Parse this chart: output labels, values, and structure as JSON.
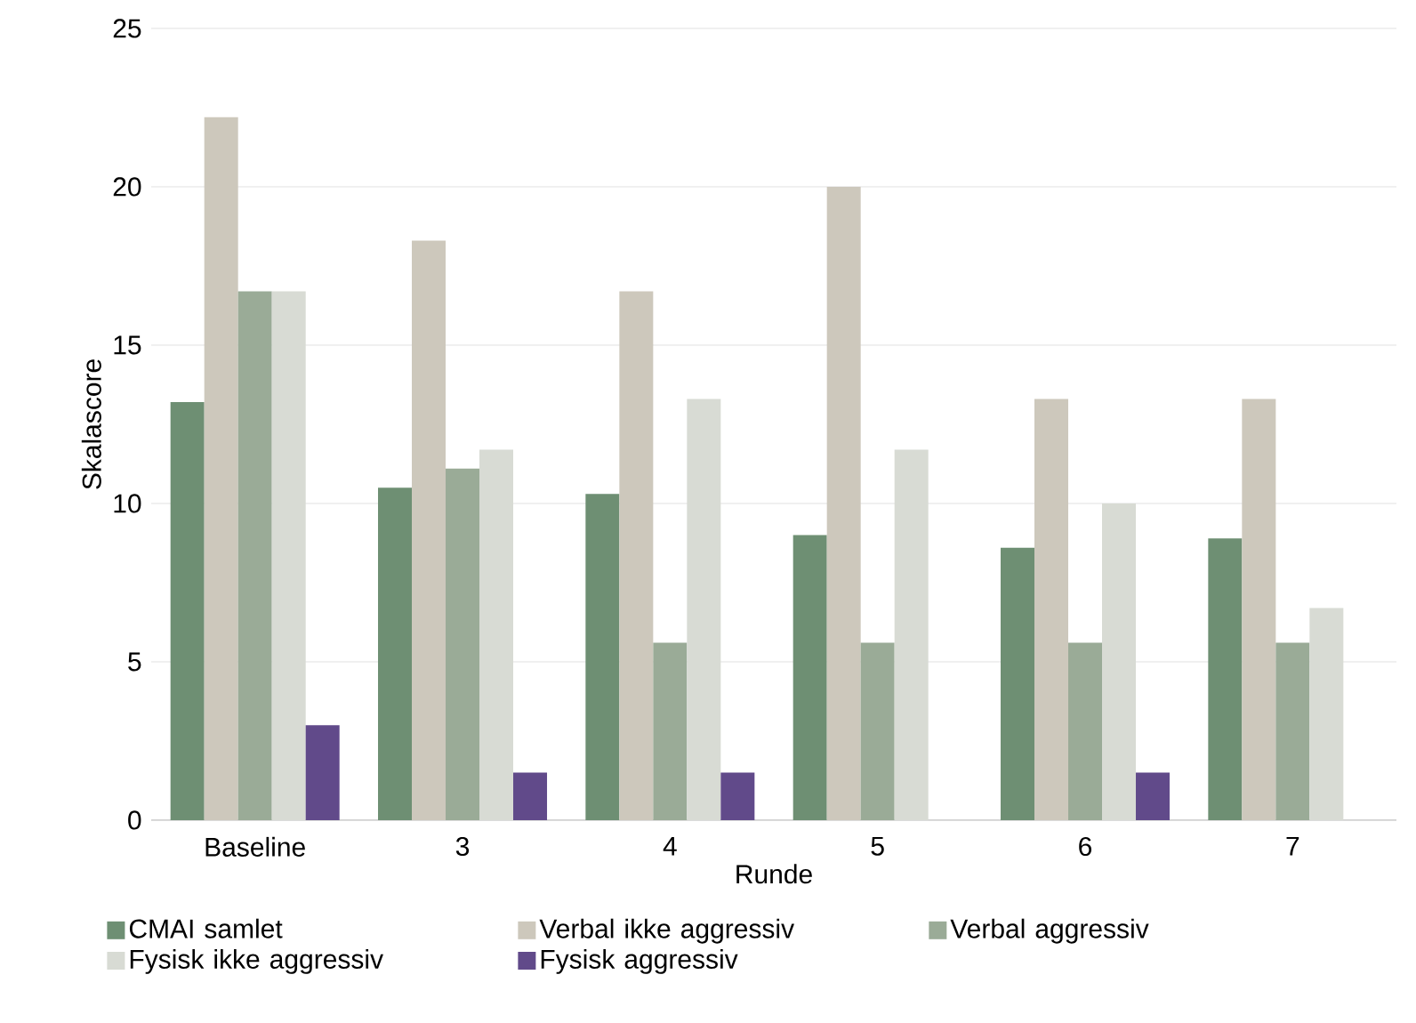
{
  "chart_data": {
    "type": "bar",
    "xlabel": "Runde",
    "ylabel": "Skalascore",
    "categories": [
      "Baseline",
      "3",
      "4",
      "5",
      "6",
      "7"
    ],
    "series": [
      {
        "name": "CMAI samlet",
        "color": "#6e8f73",
        "values": [
          13.2,
          10.5,
          10.3,
          9.0,
          8.6,
          8.9
        ]
      },
      {
        "name": "Verbal ikke aggressiv",
        "color": "#cdc8bc",
        "values": [
          22.2,
          18.3,
          16.7,
          20.0,
          13.3,
          13.3
        ]
      },
      {
        "name": "Verbal aggressiv",
        "color": "#9aab97",
        "values": [
          16.7,
          11.1,
          5.6,
          5.6,
          5.6,
          5.6
        ]
      },
      {
        "name": "Fysisk ikke aggressiv",
        "color": "#d8dbd4",
        "values": [
          16.7,
          11.7,
          13.3,
          11.7,
          10.0,
          6.7
        ]
      },
      {
        "name": "Fysisk aggressiv",
        "color": "#614a8a",
        "values": [
          3.0,
          1.5,
          1.5,
          0,
          1.5,
          0
        ]
      }
    ],
    "ylim": [
      0,
      25
    ],
    "yticks": [
      0,
      5,
      10,
      15,
      20,
      25
    ],
    "grid": "y",
    "legend": "bottom"
  }
}
